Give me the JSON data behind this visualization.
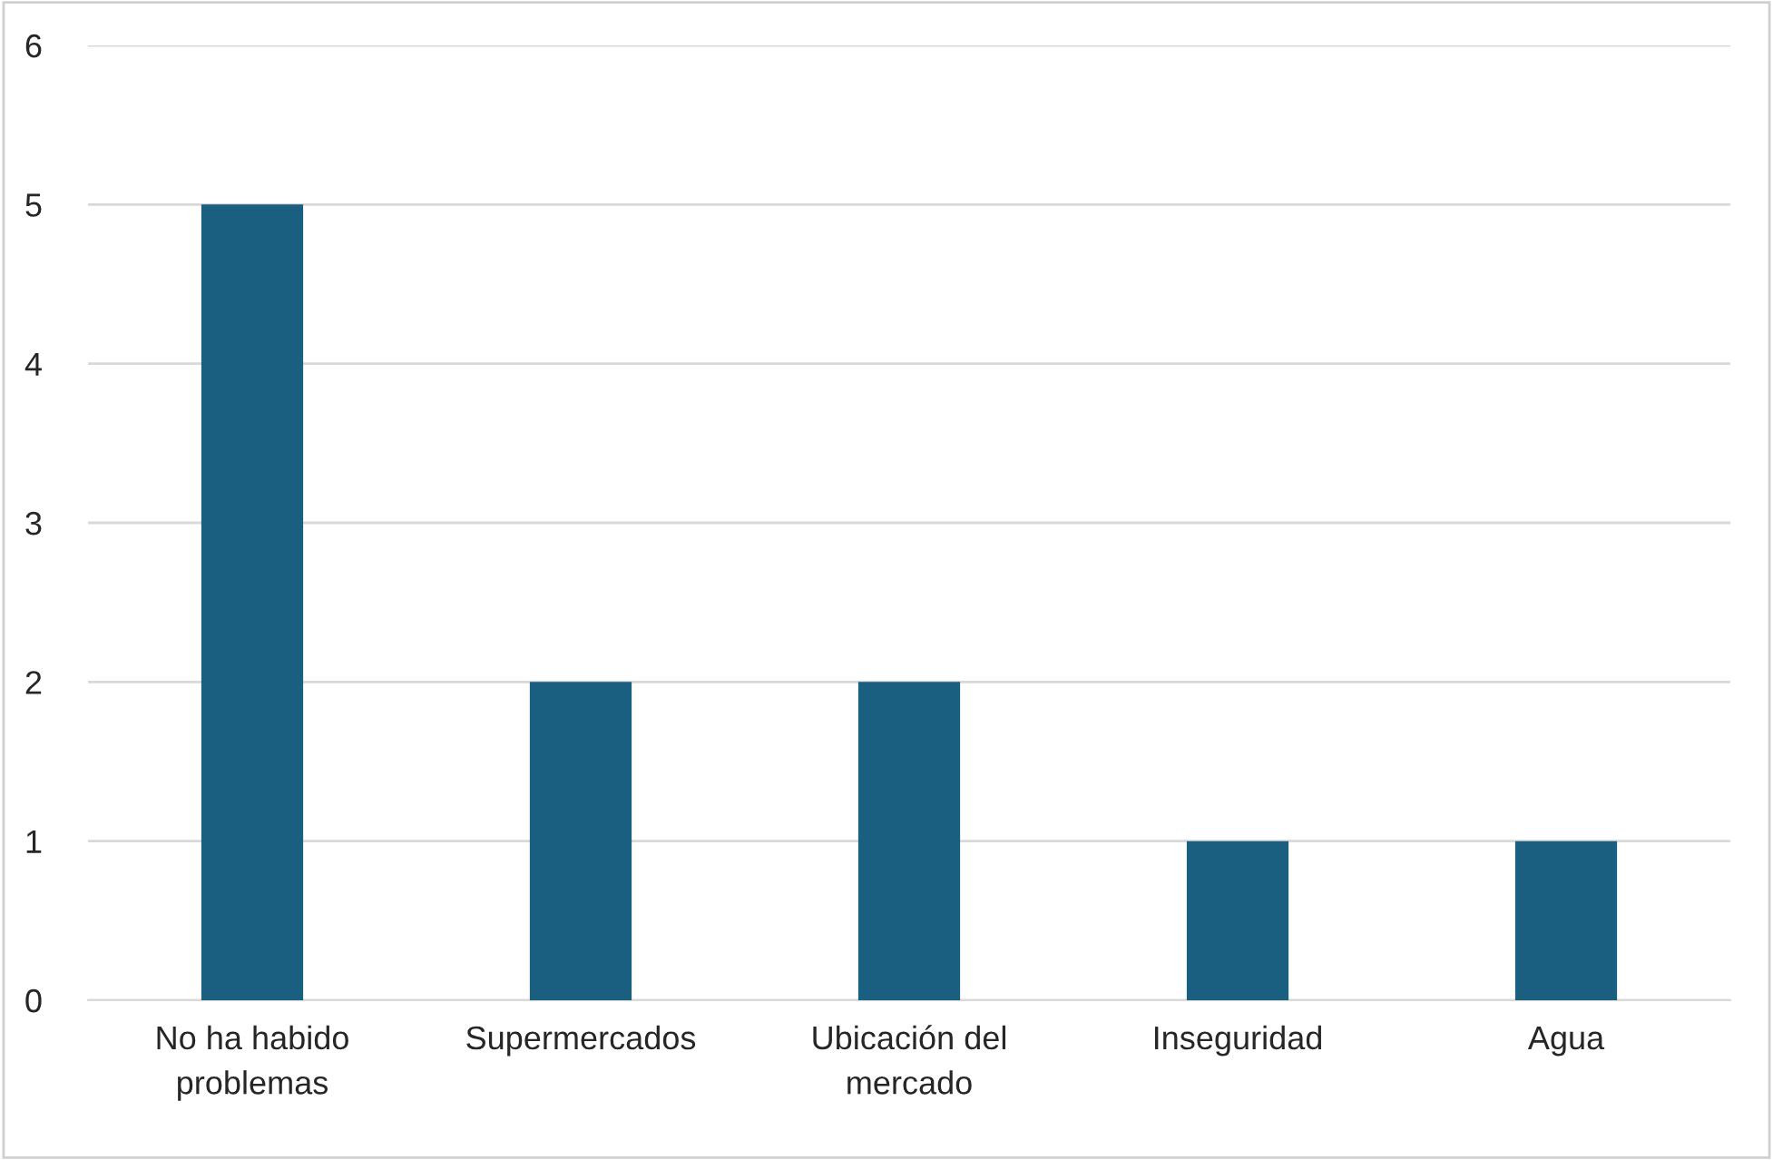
{
  "chart_data": {
    "type": "bar",
    "categories": [
      "No ha habido\nproblemas",
      "Supermercados",
      "Ubicación del\nmercado",
      "Inseguridad",
      "Agua"
    ],
    "values": [
      5,
      2,
      2,
      1,
      1
    ],
    "color": "#1a5f80",
    "ylim": [
      0,
      6
    ],
    "yticks": [
      0,
      1,
      2,
      3,
      4,
      5,
      6
    ],
    "grid": "y",
    "legend": false
  }
}
